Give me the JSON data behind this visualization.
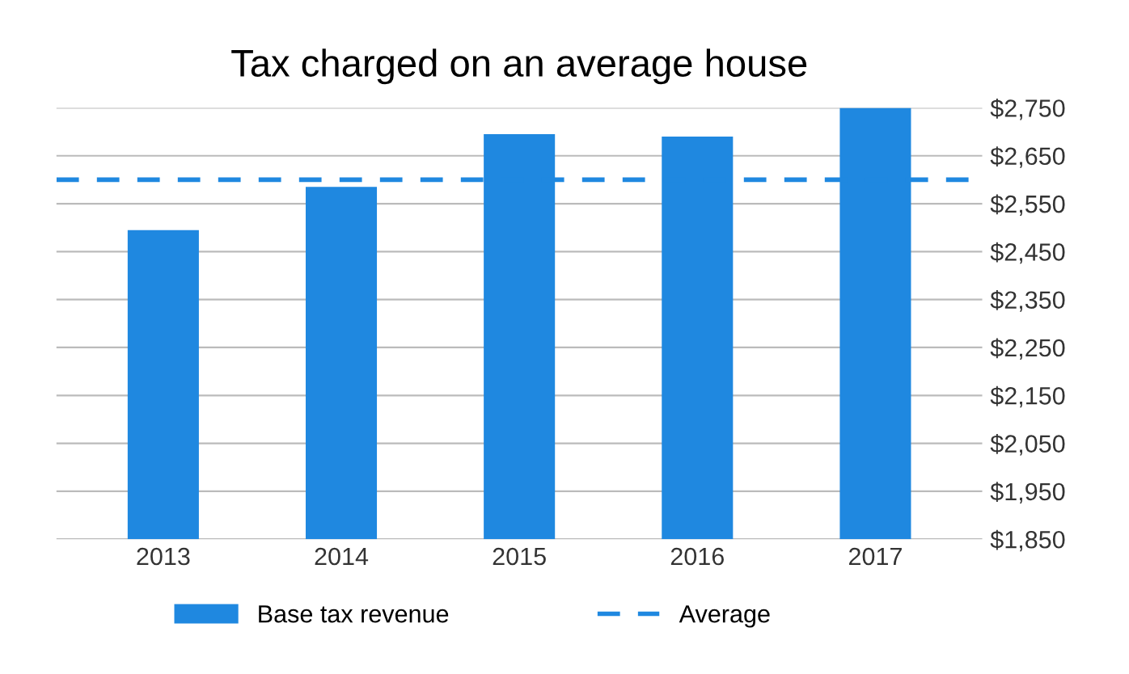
{
  "chart_data": {
    "type": "bar",
    "title": "Tax charged on an average house",
    "categories": [
      "2013",
      "2014",
      "2015",
      "2016",
      "2017"
    ],
    "series": [
      {
        "name": "Base tax revenue",
        "color": "#1f88e0",
        "values": [
          2495,
          2585,
          2695,
          2690,
          2750
        ]
      }
    ],
    "ref_lines": [
      {
        "axis": "y",
        "value": 2600,
        "label": "Average",
        "color": "#1f88e0",
        "line_style": "dashed"
      }
    ],
    "ylim": [
      1850,
      2750
    ],
    "yticks": [
      {
        "value": 1850,
        "label": "$1,850"
      },
      {
        "value": 1950,
        "label": "$1,950"
      },
      {
        "value": 2050,
        "label": "$2,050"
      },
      {
        "value": 2150,
        "label": "$2,150"
      },
      {
        "value": 2250,
        "label": "$2,250"
      },
      {
        "value": 2350,
        "label": "$2,350"
      },
      {
        "value": 2450,
        "label": "$2,450"
      },
      {
        "value": 2550,
        "label": "$2,550"
      },
      {
        "value": 2650,
        "label": "$2,650"
      },
      {
        "value": 2750,
        "label": "$2,750"
      }
    ],
    "grid": "y",
    "legend": "bottom"
  }
}
